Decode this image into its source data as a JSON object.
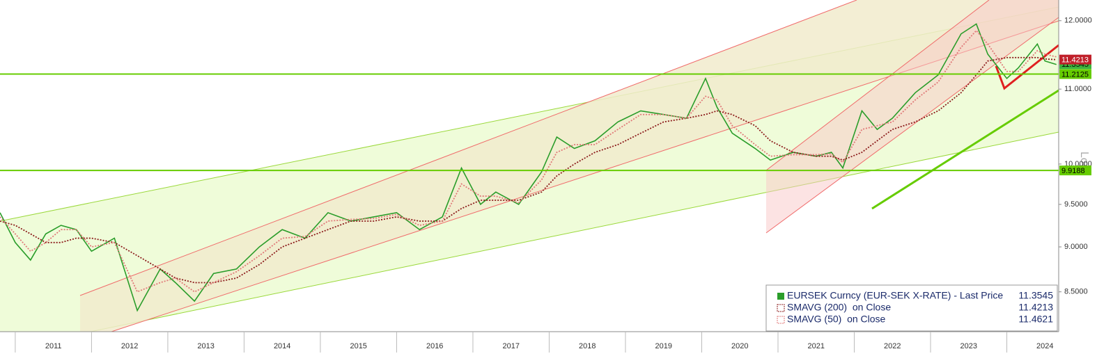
{
  "chart_data": {
    "type": "line",
    "x": [
      2010.8,
      2011.0,
      2011.2,
      2011.4,
      2011.6,
      2011.8,
      2012.0,
      2012.3,
      2012.6,
      2012.9,
      2013.1,
      2013.35,
      2013.6,
      2013.9,
      2014.2,
      2014.5,
      2014.8,
      2015.1,
      2015.4,
      2015.7,
      2016.0,
      2016.3,
      2016.6,
      2016.85,
      2017.1,
      2017.3,
      2017.6,
      2017.9,
      2018.1,
      2018.33,
      2018.6,
      2018.9,
      2019.2,
      2019.5,
      2019.8,
      2020.05,
      2020.2,
      2020.4,
      2020.7,
      2020.9,
      2021.2,
      2021.5,
      2021.7,
      2021.85,
      2022.1,
      2022.3,
      2022.5,
      2022.8,
      2023.1,
      2023.4,
      2023.6,
      2023.75,
      2024.0,
      2024.15,
      2024.4,
      2024.5,
      2024.65
    ],
    "series": [
      {
        "name": "EURSEK Curncy (EUR-SEK X-RATE) - Last Price",
        "color": "#2a9d2a",
        "last": 11.3545,
        "values": [
          9.4,
          9.05,
          8.85,
          9.15,
          9.25,
          9.2,
          8.95,
          9.1,
          8.3,
          8.75,
          8.6,
          8.4,
          8.7,
          8.75,
          9.0,
          9.2,
          9.1,
          9.4,
          9.3,
          9.35,
          9.4,
          9.2,
          9.35,
          9.95,
          9.5,
          9.65,
          9.5,
          9.9,
          10.35,
          10.2,
          10.3,
          10.55,
          10.7,
          10.65,
          10.6,
          11.15,
          10.75,
          10.4,
          10.2,
          10.05,
          10.15,
          10.1,
          10.15,
          9.95,
          10.7,
          10.45,
          10.6,
          10.95,
          11.2,
          11.8,
          11.95,
          11.5,
          11.15,
          11.3,
          11.65,
          11.4,
          11.35
        ]
      },
      {
        "name": "SMAVG (200)  on Close",
        "color": "#8b1a1a",
        "last": 11.4213,
        "values": [
          9.3,
          9.25,
          9.15,
          9.05,
          9.05,
          9.1,
          9.1,
          9.05,
          8.9,
          8.75,
          8.65,
          8.6,
          8.6,
          8.65,
          8.8,
          9.0,
          9.1,
          9.2,
          9.3,
          9.3,
          9.35,
          9.3,
          9.3,
          9.45,
          9.55,
          9.55,
          9.55,
          9.65,
          9.85,
          10.0,
          10.15,
          10.25,
          10.4,
          10.55,
          10.6,
          10.65,
          10.7,
          10.65,
          10.5,
          10.3,
          10.15,
          10.1,
          10.1,
          10.05,
          10.15,
          10.3,
          10.45,
          10.55,
          10.7,
          10.95,
          11.2,
          11.4,
          11.45,
          11.45,
          11.45,
          11.43,
          11.42
        ]
      },
      {
        "name": "SMAVG (50)  on Close",
        "color": "#e07878",
        "last": 11.4621,
        "values": [
          9.35,
          9.15,
          8.95,
          9.05,
          9.2,
          9.2,
          9.0,
          9.05,
          8.5,
          8.6,
          8.65,
          8.5,
          8.6,
          8.72,
          8.9,
          9.1,
          9.12,
          9.3,
          9.32,
          9.33,
          9.38,
          9.25,
          9.3,
          9.75,
          9.6,
          9.6,
          9.52,
          9.8,
          10.15,
          10.25,
          10.25,
          10.45,
          10.65,
          10.65,
          10.6,
          10.9,
          10.85,
          10.5,
          10.25,
          10.1,
          10.12,
          10.12,
          10.13,
          10.02,
          10.45,
          10.5,
          10.55,
          10.85,
          11.1,
          11.6,
          11.85,
          11.65,
          11.25,
          11.25,
          11.55,
          11.5,
          11.46
        ]
      }
    ],
    "xlim": [
      2010.8,
      2024.68
    ],
    "xticks": [
      {
        "value": 2011.5,
        "label": "2011"
      },
      {
        "value": 2012.5,
        "label": "2012"
      },
      {
        "value": 2013.5,
        "label": "2013"
      },
      {
        "value": 2014.5,
        "label": "2014"
      },
      {
        "value": 2015.5,
        "label": "2015"
      },
      {
        "value": 2016.5,
        "label": "2016"
      },
      {
        "value": 2017.5,
        "label": "2017"
      },
      {
        "value": 2018.5,
        "label": "2018"
      },
      {
        "value": 2019.5,
        "label": "2019"
      },
      {
        "value": 2020.5,
        "label": "2020"
      },
      {
        "value": 2021.5,
        "label": "2021"
      },
      {
        "value": 2022.5,
        "label": "2022"
      },
      {
        "value": 2023.5,
        "label": "2023"
      },
      {
        "value": 2024.5,
        "label": "2024"
      }
    ],
    "ylim": [
      8.08,
      12.32
    ],
    "yticks": [
      {
        "value": 8.5,
        "label": "8.5000"
      },
      {
        "value": 9,
        "label": "9.0000"
      },
      {
        "value": 9.5,
        "label": "9.5000"
      },
      {
        "value": 10,
        "label": "10.0000"
      },
      {
        "value": 11,
        "label": "11.0000"
      },
      {
        "value": 12,
        "label": "12.0000"
      }
    ],
    "log_scale": true,
    "scale_label": "Log",
    "hlines": [
      {
        "value": 11.2125,
        "color": "#66cc00"
      },
      {
        "value": 9.9188,
        "color": "#66cc00"
      }
    ]
  }
}
